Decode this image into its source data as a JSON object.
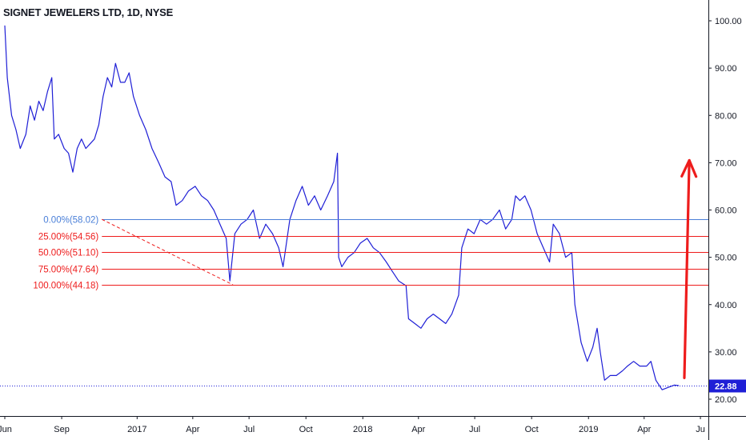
{
  "header": {
    "title": "SIGNET JEWELERS LTD, 1D, NYSE"
  },
  "colors": {
    "price_line": "#1f1fd6",
    "fib_base": "#4a7fd8",
    "fib_levels": "#ee1c1c",
    "arrow": "#ee1c1c",
    "last_price_badge": "#1f1fd6"
  },
  "chart_data": {
    "type": "line",
    "title": "SIGNET JEWELERS LTD, 1D, NYSE",
    "xlabel": "",
    "ylabel": "",
    "ylim": [
      18,
      107
    ],
    "y_ticks": [
      "100.00",
      "90.00",
      "80.00",
      "70.00",
      "60.00",
      "50.00",
      "40.00",
      "30.00",
      "20.00"
    ],
    "y_tick_values": [
      100,
      90,
      80,
      70,
      60,
      50,
      40,
      30,
      20
    ],
    "x_ticks": [
      "Jun",
      "Sep",
      "2017",
      "Apr",
      "Jul",
      "Oct",
      "2018",
      "Apr",
      "Jul",
      "Oct",
      "2019",
      "Apr",
      "Ju"
    ],
    "x_tick_dates": [
      "2016-06-01",
      "2016-09-01",
      "2017-01-01",
      "2017-04-01",
      "2017-07-01",
      "2017-10-01",
      "2018-01-01",
      "2018-04-01",
      "2018-07-01",
      "2018-10-01",
      "2019-01-01",
      "2019-04-01",
      "2019-07-01"
    ],
    "xlim": [
      "2016-06-01",
      "2019-07-10"
    ],
    "last_price": "22.88",
    "last_price_value": 22.88,
    "grid": false,
    "series": [
      {
        "points": [
          [
            "2016-06-01",
            99
          ],
          [
            "2016-06-05",
            88
          ],
          [
            "2016-06-12",
            80
          ],
          [
            "2016-06-19",
            77
          ],
          [
            "2016-06-26",
            73
          ],
          [
            "2016-07-05",
            76
          ],
          [
            "2016-07-12",
            82
          ],
          [
            "2016-07-19",
            79
          ],
          [
            "2016-07-26",
            83
          ],
          [
            "2016-08-02",
            81
          ],
          [
            "2016-08-09",
            85
          ],
          [
            "2016-08-16",
            88
          ],
          [
            "2016-08-20",
            75
          ],
          [
            "2016-08-27",
            76
          ],
          [
            "2016-09-05",
            73
          ],
          [
            "2016-09-12",
            72
          ],
          [
            "2016-09-19",
            68
          ],
          [
            "2016-09-26",
            73
          ],
          [
            "2016-10-03",
            75
          ],
          [
            "2016-10-10",
            73
          ],
          [
            "2016-10-17",
            74
          ],
          [
            "2016-10-24",
            75
          ],
          [
            "2016-10-31",
            78
          ],
          [
            "2016-11-07",
            84
          ],
          [
            "2016-11-14",
            88
          ],
          [
            "2016-11-21",
            86
          ],
          [
            "2016-11-27",
            91
          ],
          [
            "2016-12-05",
            87
          ],
          [
            "2016-12-12",
            87
          ],
          [
            "2016-12-19",
            89
          ],
          [
            "2016-12-26",
            84
          ],
          [
            "2017-01-05",
            80
          ],
          [
            "2017-01-15",
            77
          ],
          [
            "2017-01-25",
            73
          ],
          [
            "2017-02-05",
            70
          ],
          [
            "2017-02-15",
            67
          ],
          [
            "2017-02-25",
            66
          ],
          [
            "2017-03-05",
            61
          ],
          [
            "2017-03-15",
            62
          ],
          [
            "2017-03-25",
            64
          ],
          [
            "2017-04-05",
            65
          ],
          [
            "2017-04-15",
            63
          ],
          [
            "2017-04-25",
            62
          ],
          [
            "2017-05-05",
            60
          ],
          [
            "2017-05-15",
            57
          ],
          [
            "2017-05-25",
            54
          ],
          [
            "2017-05-31",
            45
          ],
          [
            "2017-06-08",
            55
          ],
          [
            "2017-06-18",
            57
          ],
          [
            "2017-06-28",
            58
          ],
          [
            "2017-07-08",
            60
          ],
          [
            "2017-07-18",
            54
          ],
          [
            "2017-07-28",
            57
          ],
          [
            "2017-08-08",
            55
          ],
          [
            "2017-08-18",
            52
          ],
          [
            "2017-08-25",
            48
          ],
          [
            "2017-09-05",
            58
          ],
          [
            "2017-09-15",
            62
          ],
          [
            "2017-09-25",
            65
          ],
          [
            "2017-10-05",
            61
          ],
          [
            "2017-10-15",
            63
          ],
          [
            "2017-10-25",
            60
          ],
          [
            "2017-11-05",
            63
          ],
          [
            "2017-11-15",
            66
          ],
          [
            "2017-11-21",
            72
          ],
          [
            "2017-11-23",
            50
          ],
          [
            "2017-11-28",
            48
          ],
          [
            "2017-12-08",
            50
          ],
          [
            "2017-12-18",
            51
          ],
          [
            "2017-12-28",
            53
          ],
          [
            "2018-01-08",
            54
          ],
          [
            "2018-01-18",
            52
          ],
          [
            "2018-01-28",
            51
          ],
          [
            "2018-02-08",
            49
          ],
          [
            "2018-02-18",
            47
          ],
          [
            "2018-02-28",
            45
          ],
          [
            "2018-03-12",
            44
          ],
          [
            "2018-03-16",
            37
          ],
          [
            "2018-03-26",
            36
          ],
          [
            "2018-04-05",
            35
          ],
          [
            "2018-04-15",
            37
          ],
          [
            "2018-04-25",
            38
          ],
          [
            "2018-05-05",
            37
          ],
          [
            "2018-05-15",
            36
          ],
          [
            "2018-05-25",
            38
          ],
          [
            "2018-06-05",
            42
          ],
          [
            "2018-06-10",
            52
          ],
          [
            "2018-06-20",
            56
          ],
          [
            "2018-06-30",
            55
          ],
          [
            "2018-07-10",
            58
          ],
          [
            "2018-07-20",
            57
          ],
          [
            "2018-07-30",
            58
          ],
          [
            "2018-08-10",
            60
          ],
          [
            "2018-08-20",
            56
          ],
          [
            "2018-08-30",
            58
          ],
          [
            "2018-09-05",
            63
          ],
          [
            "2018-09-12",
            62
          ],
          [
            "2018-09-20",
            63
          ],
          [
            "2018-09-30",
            60
          ],
          [
            "2018-10-10",
            55
          ],
          [
            "2018-10-20",
            52
          ],
          [
            "2018-10-30",
            49
          ],
          [
            "2018-11-05",
            57
          ],
          [
            "2018-11-15",
            55
          ],
          [
            "2018-11-25",
            50
          ],
          [
            "2018-12-05",
            51
          ],
          [
            "2018-12-10",
            40
          ],
          [
            "2018-12-20",
            32
          ],
          [
            "2018-12-30",
            28
          ],
          [
            "2019-01-08",
            31
          ],
          [
            "2019-01-15",
            35
          ],
          [
            "2019-01-20",
            30
          ],
          [
            "2019-01-27",
            24
          ],
          [
            "2019-02-05",
            25
          ],
          [
            "2019-02-15",
            25
          ],
          [
            "2019-02-25",
            26
          ],
          [
            "2019-03-05",
            27
          ],
          [
            "2019-03-15",
            28
          ],
          [
            "2019-03-25",
            27
          ],
          [
            "2019-04-05",
            27
          ],
          [
            "2019-04-12",
            28
          ],
          [
            "2019-04-20",
            24
          ],
          [
            "2019-04-30",
            22
          ],
          [
            "2019-05-10",
            22.5
          ],
          [
            "2019-05-20",
            23
          ],
          [
            "2019-05-27",
            22.88
          ]
        ]
      }
    ],
    "fibonacci": {
      "levels": [
        {
          "label": "0.00%(58.02)",
          "value": 58.02
        },
        {
          "label": "25.00%(54.56)",
          "value": 54.56
        },
        {
          "label": "50.00%(51.10)",
          "value": 51.1
        },
        {
          "label": "75.00%(47.64)",
          "value": 47.64
        },
        {
          "label": "100.00%(44.18)",
          "value": 44.18
        }
      ],
      "trend_from": [
        "2016-11-05",
        58.02
      ],
      "trend_to": [
        "2017-06-05",
        44.18
      ],
      "extends_to": "right"
    },
    "annotations": [
      {
        "type": "arrow",
        "from": [
          "2019-06-05",
          24.5
        ],
        "to": [
          "2019-06-13",
          70.5
        ]
      }
    ]
  }
}
